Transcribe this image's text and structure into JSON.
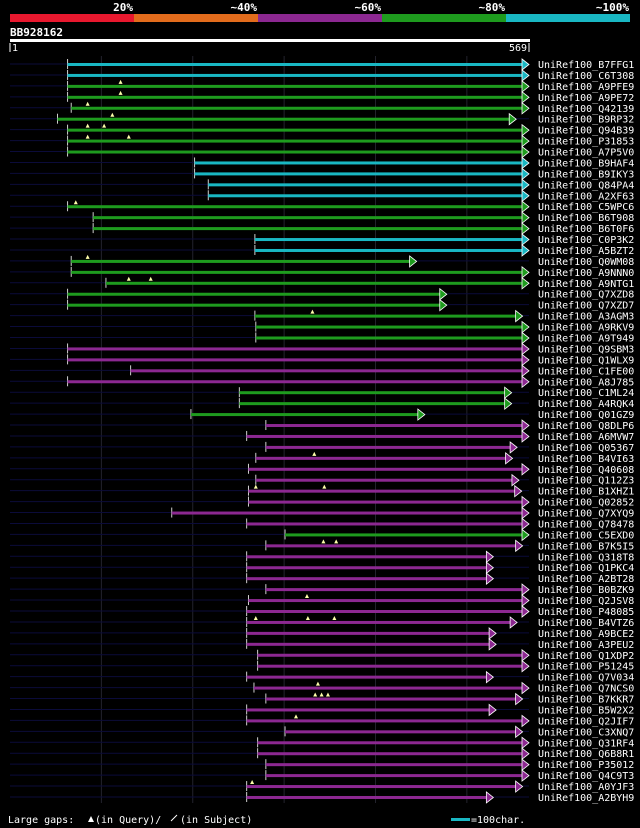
{
  "chart_data": {
    "type": "alignment-overview",
    "query_name": "BB928162",
    "query_start": "1",
    "query_end": "569",
    "query_length": 569,
    "identity_scale": [
      {
        "label": "20%",
        "color": "#e8182e"
      },
      {
        "label": "~40%",
        "color": "#e26c1c"
      },
      {
        "label": "~60%",
        "color": "#8c2891"
      },
      {
        "label": "~80%",
        "color": "#1e9b1e"
      },
      {
        "label": "~100%",
        "color": "#19b7c3"
      }
    ],
    "hits": [
      {
        "name": "UniRef100_B7FFG1",
        "start": 64,
        "end": 569,
        "identity": 5,
        "arrow": true,
        "qgaps": []
      },
      {
        "name": "UniRef100_C6T308",
        "start": 64,
        "end": 569,
        "identity": 5,
        "arrow": true,
        "qgaps": []
      },
      {
        "name": "UniRef100_A9PFE9",
        "start": 64,
        "end": 569,
        "identity": 4,
        "arrow": true,
        "qgaps": [
          122
        ]
      },
      {
        "name": "UniRef100_A9PE72",
        "start": 64,
        "end": 569,
        "identity": 4,
        "arrow": true,
        "qgaps": [
          122
        ]
      },
      {
        "name": "UniRef100_Q42139",
        "start": 68,
        "end": 569,
        "identity": 4,
        "arrow": true,
        "qgaps": [
          86
        ]
      },
      {
        "name": "UniRef100_B9RP32",
        "start": 53,
        "end": 555,
        "identity": 4,
        "arrow": true,
        "qgaps": [
          113
        ]
      },
      {
        "name": "UniRef100_Q94B39",
        "start": 64,
        "end": 569,
        "identity": 4,
        "arrow": true,
        "qgaps": [
          86,
          104
        ]
      },
      {
        "name": "UniRef100_P31853",
        "start": 64,
        "end": 569,
        "identity": 4,
        "arrow": true,
        "qgaps": [
          86,
          131
        ]
      },
      {
        "name": "UniRef100_A7P5V0",
        "start": 64,
        "end": 569,
        "identity": 4,
        "arrow": true,
        "qgaps": []
      },
      {
        "name": "UniRef100_B9HAF4",
        "start": 203,
        "end": 569,
        "identity": 5,
        "arrow": true,
        "qgaps": []
      },
      {
        "name": "UniRef100_B9IKY3",
        "start": 203,
        "end": 569,
        "identity": 5,
        "arrow": true,
        "qgaps": []
      },
      {
        "name": "UniRef100_Q84PA4",
        "start": 218,
        "end": 569,
        "identity": 5,
        "arrow": true,
        "qgaps": []
      },
      {
        "name": "UniRef100_A2XF63",
        "start": 218,
        "end": 569,
        "identity": 5,
        "arrow": true,
        "qgaps": []
      },
      {
        "name": "UniRef100_C5WPC6",
        "start": 64,
        "end": 569,
        "identity": 4,
        "arrow": true,
        "qgaps": [
          73
        ]
      },
      {
        "name": "UniRef100_B6T908",
        "start": 92,
        "end": 569,
        "identity": 4,
        "arrow": true,
        "qgaps": []
      },
      {
        "name": "UniRef100_B6T0F6",
        "start": 92,
        "end": 569,
        "identity": 4,
        "arrow": true,
        "qgaps": []
      },
      {
        "name": "UniRef100_C0P3K2",
        "start": 269,
        "end": 569,
        "identity": 5,
        "arrow": true,
        "qgaps": []
      },
      {
        "name": "UniRef100_A5BZT2",
        "start": 269,
        "end": 569,
        "identity": 5,
        "arrow": true,
        "qgaps": []
      },
      {
        "name": "UniRef100_Q0WM08",
        "start": 68,
        "end": 446,
        "identity": 4,
        "arrow": true,
        "qgaps": [
          86
        ]
      },
      {
        "name": "UniRef100_A9NNN0",
        "start": 68,
        "end": 569,
        "identity": 4,
        "arrow": true,
        "qgaps": []
      },
      {
        "name": "UniRef100_A9NTG1",
        "start": 106,
        "end": 569,
        "identity": 4,
        "arrow": true,
        "qgaps": [
          131,
          155
        ]
      },
      {
        "name": "UniRef100_Q7XZD8",
        "start": 64,
        "end": 479,
        "identity": 4,
        "arrow": true,
        "qgaps": []
      },
      {
        "name": "UniRef100_Q7XZD7",
        "start": 64,
        "end": 479,
        "identity": 4,
        "arrow": true,
        "qgaps": []
      },
      {
        "name": "UniRef100_A3AGM3",
        "start": 269,
        "end": 562,
        "identity": 4,
        "arrow": true,
        "qgaps": [
          332
        ]
      },
      {
        "name": "UniRef100_A9RKV9",
        "start": 270,
        "end": 569,
        "identity": 4,
        "arrow": true,
        "qgaps": []
      },
      {
        "name": "UniRef100_A9T949",
        "start": 270,
        "end": 569,
        "identity": 4,
        "arrow": true,
        "qgaps": []
      },
      {
        "name": "UniRef100_Q9SBM3",
        "start": 64,
        "end": 569,
        "identity": 3,
        "arrow": true,
        "qgaps": []
      },
      {
        "name": "UniRef100_Q1WLX9",
        "start": 64,
        "end": 569,
        "identity": 3,
        "arrow": true,
        "qgaps": []
      },
      {
        "name": "UniRef100_C1FE00",
        "start": 133,
        "end": 569,
        "identity": 3,
        "arrow": true,
        "qgaps": []
      },
      {
        "name": "UniRef100_A8J785",
        "start": 64,
        "end": 569,
        "identity": 3,
        "arrow": true,
        "qgaps": []
      },
      {
        "name": "UniRef100_C1ML24",
        "start": 252,
        "end": 550,
        "identity": 4,
        "arrow": true,
        "qgaps": []
      },
      {
        "name": "UniRef100_A4RQK4",
        "start": 252,
        "end": 550,
        "identity": 4,
        "arrow": true,
        "qgaps": []
      },
      {
        "name": "UniRef100_Q01GZ9",
        "start": 199,
        "end": 455,
        "identity": 4,
        "arrow": true,
        "qgaps": []
      },
      {
        "name": "UniRef100_Q8DLP6",
        "start": 281,
        "end": 569,
        "identity": 3,
        "arrow": true,
        "qgaps": []
      },
      {
        "name": "UniRef100_A6MVW7",
        "start": 260,
        "end": 569,
        "identity": 3,
        "arrow": true,
        "qgaps": []
      },
      {
        "name": "UniRef100_Q05367",
        "start": 281,
        "end": 556,
        "identity": 3,
        "arrow": true,
        "qgaps": []
      },
      {
        "name": "UniRef100_B4VI63",
        "start": 270,
        "end": 551,
        "identity": 3,
        "arrow": true,
        "qgaps": [
          334
        ]
      },
      {
        "name": "UniRef100_Q40608",
        "start": 262,
        "end": 569,
        "identity": 3,
        "arrow": true,
        "qgaps": []
      },
      {
        "name": "UniRef100_Q112Z3",
        "start": 270,
        "end": 558,
        "identity": 3,
        "arrow": true,
        "qgaps": []
      },
      {
        "name": "UniRef100_B1XHZ1",
        "start": 262,
        "end": 561,
        "identity": 3,
        "arrow": true,
        "qgaps": [
          270,
          345
        ]
      },
      {
        "name": "UniRef100_Q02852",
        "start": 262,
        "end": 569,
        "identity": 3,
        "arrow": true,
        "qgaps": []
      },
      {
        "name": "UniRef100_Q7XYQ9",
        "start": 178,
        "end": 569,
        "identity": 3,
        "arrow": true,
        "qgaps": []
      },
      {
        "name": "UniRef100_Q78478",
        "start": 260,
        "end": 569,
        "identity": 3,
        "arrow": true,
        "qgaps": []
      },
      {
        "name": "UniRef100_C5EXD0",
        "start": 302,
        "end": 569,
        "identity": 4,
        "arrow": true,
        "qgaps": []
      },
      {
        "name": "UniRef100_B7K5I5",
        "start": 281,
        "end": 562,
        "identity": 3,
        "arrow": true,
        "qgaps": [
          344,
          358
        ]
      },
      {
        "name": "UniRef100_Q318T8",
        "start": 260,
        "end": 530,
        "identity": 3,
        "arrow": true,
        "qgaps": []
      },
      {
        "name": "UniRef100_Q1PKC4",
        "start": 260,
        "end": 530,
        "identity": 3,
        "arrow": true,
        "qgaps": []
      },
      {
        "name": "UniRef100_A2BT28",
        "start": 260,
        "end": 530,
        "identity": 3,
        "arrow": true,
        "qgaps": []
      },
      {
        "name": "UniRef100_B0BZK9",
        "start": 281,
        "end": 569,
        "identity": 3,
        "arrow": true,
        "qgaps": []
      },
      {
        "name": "UniRef100_Q2JSV8",
        "start": 262,
        "end": 569,
        "identity": 3,
        "arrow": true,
        "qgaps": [
          326
        ]
      },
      {
        "name": "UniRef100_P48085",
        "start": 260,
        "end": 569,
        "identity": 3,
        "arrow": true,
        "qgaps": []
      },
      {
        "name": "UniRef100_B4VTZ6",
        "start": 260,
        "end": 556,
        "identity": 3,
        "arrow": true,
        "qgaps": [
          270,
          327,
          356
        ]
      },
      {
        "name": "UniRef100_A9BCE2",
        "start": 260,
        "end": 533,
        "identity": 3,
        "arrow": true,
        "qgaps": []
      },
      {
        "name": "UniRef100_A3PEU2",
        "start": 260,
        "end": 533,
        "identity": 3,
        "arrow": true,
        "qgaps": []
      },
      {
        "name": "UniRef100_Q1XDP2",
        "start": 272,
        "end": 569,
        "identity": 3,
        "arrow": true,
        "qgaps": []
      },
      {
        "name": "UniRef100_P51245",
        "start": 272,
        "end": 569,
        "identity": 3,
        "arrow": true,
        "qgaps": []
      },
      {
        "name": "UniRef100_Q7V034",
        "start": 260,
        "end": 530,
        "identity": 3,
        "arrow": true,
        "qgaps": []
      },
      {
        "name": "UniRef100_Q7NCS0",
        "start": 268,
        "end": 569,
        "identity": 3,
        "arrow": true,
        "qgaps": [
          338
        ]
      },
      {
        "name": "UniRef100_B7KKR7",
        "start": 281,
        "end": 562,
        "identity": 3,
        "arrow": true,
        "qgaps": [
          335,
          342,
          349
        ]
      },
      {
        "name": "UniRef100_B5W2X2",
        "start": 260,
        "end": 533,
        "identity": 3,
        "arrow": true,
        "qgaps": []
      },
      {
        "name": "UniRef100_Q2JIF7",
        "start": 260,
        "end": 569,
        "identity": 3,
        "arrow": true,
        "qgaps": [
          314
        ]
      },
      {
        "name": "UniRef100_C3XNQ7",
        "start": 302,
        "end": 562,
        "identity": 3,
        "arrow": true,
        "qgaps": []
      },
      {
        "name": "UniRef100_Q31RF4",
        "start": 272,
        "end": 569,
        "identity": 3,
        "arrow": true,
        "qgaps": []
      },
      {
        "name": "UniRef100_Q6B8R1",
        "start": 272,
        "end": 569,
        "identity": 3,
        "arrow": true,
        "qgaps": []
      },
      {
        "name": "UniRef100_P35012",
        "start": 281,
        "end": 569,
        "identity": 3,
        "arrow": true,
        "qgaps": []
      },
      {
        "name": "UniRef100_Q4C9T3",
        "start": 281,
        "end": 569,
        "identity": 3,
        "arrow": true,
        "qgaps": []
      },
      {
        "name": "UniRef100_A0YJF3",
        "start": 260,
        "end": 562,
        "identity": 3,
        "arrow": true,
        "qgaps": [
          266
        ]
      },
      {
        "name": "UniRef100_A2BYH9",
        "start": 260,
        "end": 530,
        "identity": 3,
        "arrow": true,
        "qgaps": []
      }
    ],
    "footer_gaps_label": "Large gaps:",
    "footer_query_text": "(in Query)/",
    "footer_subject_text": "(in Subject)",
    "footer_scale_label": "=100char."
  }
}
